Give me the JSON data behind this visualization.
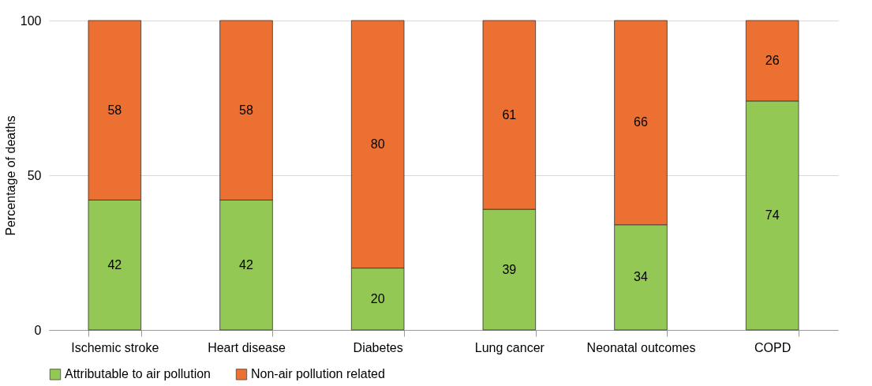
{
  "chart_data": {
    "type": "bar",
    "stacked": true,
    "ylabel": "Percentage of deaths",
    "categories": [
      "Ischemic stroke",
      "Heart disease",
      "Diabetes",
      "Lung cancer",
      "Neonatal outcomes",
      "COPD"
    ],
    "series": [
      {
        "name": "Attributable to air pollution",
        "color": "#92c853",
        "values": [
          42,
          42,
          20,
          39,
          34,
          74
        ]
      },
      {
        "name": "Non-air pollution related",
        "color": "#ed7033",
        "values": [
          58,
          58,
          80,
          61,
          66,
          26
        ]
      }
    ],
    "ylim": [
      0,
      100
    ],
    "yticks": [
      0,
      50,
      100
    ],
    "grid": "y",
    "legend": "bottom",
    "data_labels": true
  }
}
